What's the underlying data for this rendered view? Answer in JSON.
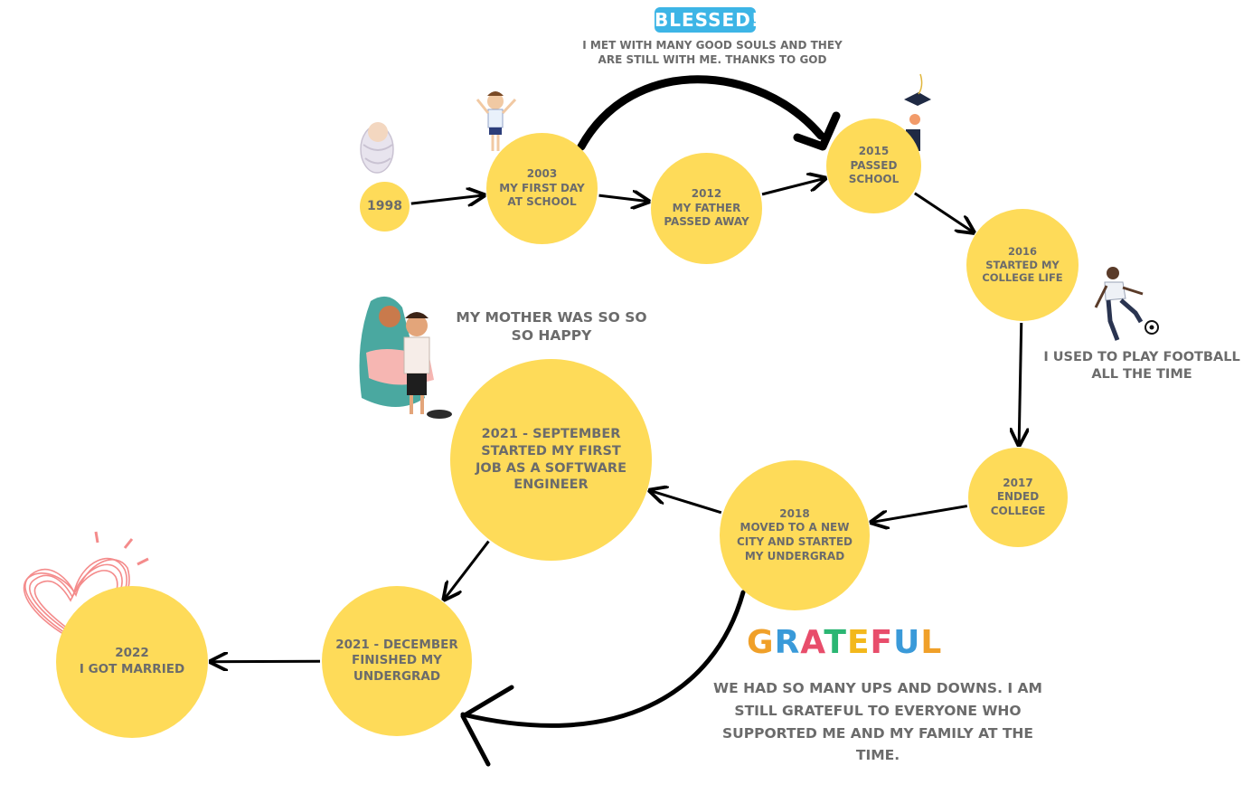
{
  "title": "",
  "nodes": [
    {
      "id": "n1998",
      "text": "1998"
    },
    {
      "id": "n2003",
      "text": "2003\nMY FIRST DAY\nAT SCHOOL"
    },
    {
      "id": "n2012",
      "text": "2012\nMY FATHER\nPASSED AWAY"
    },
    {
      "id": "n2015",
      "text": "2015\nPASSED\nSCHOOL"
    },
    {
      "id": "n2016",
      "text": "2016\nSTARTED MY\nCOLLEGE LIFE"
    },
    {
      "id": "n2017",
      "text": "2017\nENDED\nCOLLEGE"
    },
    {
      "id": "n2018",
      "text": "2018\nMOVED TO A NEW\nCITY AND STARTED\nMY UNDERGRAD"
    },
    {
      "id": "n2021s",
      "text": "2021 - SEPTEMBER\nSTARTED MY FIRST\nJOB AS A SOFTWARE\nENGINEER"
    },
    {
      "id": "n2021d",
      "text": "2021 - DECEMBER\nFINISHED MY\nUNDERGRAD"
    },
    {
      "id": "n2022",
      "text": "2022\nI GOT MARRIED"
    }
  ],
  "edges": [
    {
      "from": "n1998",
      "to": "n2003"
    },
    {
      "from": "n2003",
      "to": "n2012"
    },
    {
      "from": "n2012",
      "to": "n2015"
    },
    {
      "from": "n2003",
      "to": "n2015",
      "style": "curved-thick"
    },
    {
      "from": "n2015",
      "to": "n2016"
    },
    {
      "from": "n2016",
      "to": "n2017"
    },
    {
      "from": "n2017",
      "to": "n2018"
    },
    {
      "from": "n2018",
      "to": "n2021s"
    },
    {
      "from": "n2021s",
      "to": "n2021d"
    },
    {
      "from": "n2018",
      "to": "n2021d",
      "style": "curved-thick"
    },
    {
      "from": "n2021d",
      "to": "n2022"
    }
  ],
  "notes": {
    "blessed_word": "BLESSED!",
    "blessed_text": "I MET WITH MANY GOOD SOULS AND THEY\nARE STILL WITH ME. THANKS TO GOD",
    "mother_text": "MY MOTHER WAS SO SO\nSO HAPPY",
    "football_text": "I USED TO PLAY FOOTBALL\nALL THE TIME",
    "grateful_word": "GRATEFUL",
    "grateful_text": "WE HAD SO MANY UPS AND DOWNS. I AM\nSTILL GRATEFUL TO EVERYONE WHO\nSUPPORTED ME AND MY FAMILY AT THE\nTIME."
  },
  "colors": {
    "node": "#FEDB59",
    "text": "#6b6b6b",
    "arrow": "#000000",
    "heart": "#f48b8b",
    "blessed_fill": "#3db5e6",
    "grateful_letters": [
      "#f0a029",
      "#3a9ad9",
      "#e84d6b",
      "#2bb673",
      "#f3b81c",
      "#e84d6b",
      "#3a9ad9",
      "#f0a029"
    ]
  },
  "icons": {
    "baby": "swaddled-baby-icon",
    "schoolboy": "schoolboy-icon",
    "graduation": "graduation-cap-icon",
    "footballer": "football-player-icon",
    "mother_child": "mother-and-child-icon",
    "heart": "scribble-heart-icon"
  }
}
